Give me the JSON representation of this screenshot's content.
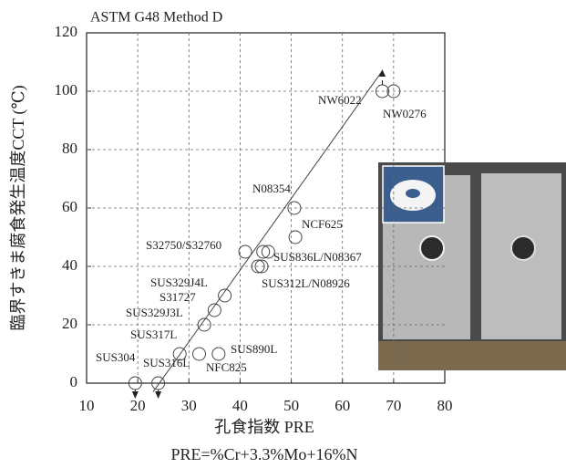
{
  "chart_data": {
    "type": "scatter",
    "title": "ASTM G48 Method D",
    "x_label": "孔食指数  PRE",
    "x_label_note": "PRE=%Cr+3.3%Mo+16%N",
    "y_label": "臨界すきま腐食発生温度CCT (℃)",
    "x": [
      19.5,
      24,
      28.2,
      32,
      35.8,
      33,
      35,
      37,
      43.5,
      44.2,
      44.5,
      45.5,
      41,
      50.8,
      50.6,
      67.8,
      70
    ],
    "values": [
      0,
      0,
      10,
      10,
      10,
      20,
      25,
      30,
      40,
      40,
      45,
      45,
      45,
      50,
      60,
      100,
      100
    ],
    "point_labels": [
      "SUS304",
      "SUS316L",
      "SUS317L",
      "NFC825",
      "SUS890L",
      "SUS329J3L",
      "S31727",
      "SUS329J4L",
      "SUS312L/N08926",
      null,
      "SUS836L/N08367",
      null,
      "S32750/S32760",
      "NCF625",
      "N08354",
      "NW6022",
      "NW0276"
    ],
    "arrows": [
      {
        "index": 0,
        "direction": "down"
      },
      {
        "index": 1,
        "direction": "down"
      },
      {
        "index": 15,
        "direction": "up"
      }
    ],
    "trend_line": {
      "x": [
        23,
        67.8
      ],
      "y": [
        -3,
        107
      ]
    },
    "color": "#444444",
    "xlim": [
      10,
      80
    ],
    "xticks": [
      10,
      20,
      30,
      40,
      50,
      60,
      70,
      80
    ],
    "ylim": [
      0,
      120
    ],
    "yticks": [
      0,
      20,
      40,
      60,
      80,
      100,
      120
    ],
    "grid": true
  }
}
